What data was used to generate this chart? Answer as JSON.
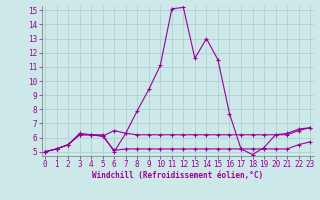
{
  "x_values": [
    0,
    1,
    2,
    3,
    4,
    5,
    6,
    7,
    8,
    9,
    10,
    11,
    12,
    13,
    14,
    15,
    16,
    17,
    18,
    19,
    20,
    21,
    22,
    23
  ],
  "line1": [
    5.0,
    5.2,
    5.5,
    6.3,
    6.2,
    6.2,
    5.0,
    6.3,
    7.9,
    9.4,
    11.1,
    15.1,
    15.2,
    11.6,
    13.0,
    11.5,
    7.7,
    5.2,
    4.8,
    5.3,
    6.2,
    6.3,
    6.6,
    6.7
  ],
  "line2": [
    5.0,
    5.2,
    5.5,
    6.2,
    6.2,
    6.1,
    6.5,
    6.3,
    6.2,
    6.2,
    6.2,
    6.2,
    6.2,
    6.2,
    6.2,
    6.2,
    6.2,
    6.2,
    6.2,
    6.2,
    6.2,
    6.2,
    6.5,
    6.7
  ],
  "line3": [
    5.0,
    5.2,
    5.5,
    6.2,
    6.2,
    6.1,
    5.1,
    5.2,
    5.2,
    5.2,
    5.2,
    5.2,
    5.2,
    5.2,
    5.2,
    5.2,
    5.2,
    5.2,
    5.2,
    5.2,
    5.2,
    5.2,
    5.5,
    5.7
  ],
  "line_color": "#990099",
  "bg_color": "#cce8e8",
  "grid_color": "#aacccc",
  "xlabel": "Windchill (Refroidissement éolien,°C)",
  "ylim": [
    5,
    15
  ],
  "xlim": [
    0,
    23
  ],
  "yticks": [
    5,
    6,
    7,
    8,
    9,
    10,
    11,
    12,
    13,
    14,
    15
  ],
  "xticks": [
    0,
    1,
    2,
    3,
    4,
    5,
    6,
    7,
    8,
    9,
    10,
    11,
    12,
    13,
    14,
    15,
    16,
    17,
    18,
    19,
    20,
    21,
    22,
    23
  ],
  "marker": "+",
  "tick_fontsize": 5.5,
  "xlabel_fontsize": 5.5,
  "marker_size": 3,
  "line_width": 0.8
}
